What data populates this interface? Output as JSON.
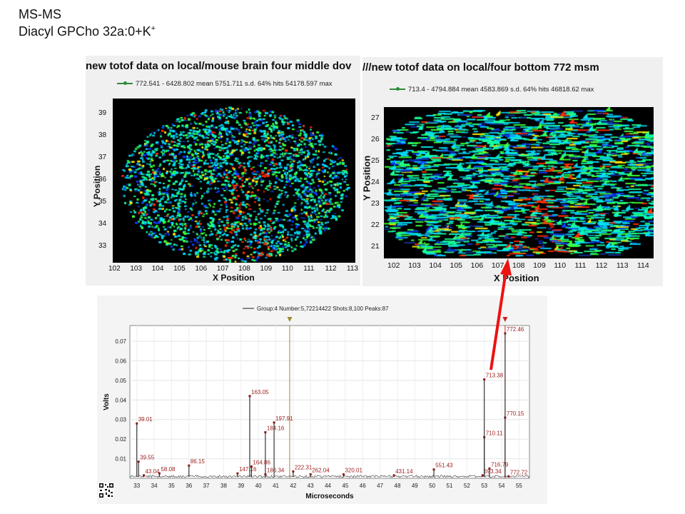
{
  "slide": {
    "title_line1": "MS-MS",
    "title_line2": "Diacyl GPCho 32a:0+K",
    "title_sup": "+"
  },
  "colors": {
    "marker": "#2e8b3a",
    "spectrum_line": "#8b1a1a",
    "peak_label": "#9b1c1c",
    "arrow": "#ee1111",
    "cursor_left": "#9a8a30",
    "cursor_right": "#cc2222"
  },
  "chart_data": [
    {
      "type": "heatmap",
      "title": "new totof data on local/mouse brain four middle dov",
      "legend": "772.541 - 6428.802 mean 5751.711 s.d. 64% hits 54178.597 max",
      "xlabel": "X Position",
      "ylabel": "Y Position",
      "xticks": [
        "102",
        "103",
        "104",
        "105",
        "106",
        "107",
        "108",
        "109",
        "110",
        "111",
        "112",
        "113"
      ],
      "yticks": [
        "39",
        "38",
        "37",
        "36",
        "35",
        "34",
        "33"
      ],
      "xlim": [
        102,
        113
      ],
      "ylim": [
        32.5,
        39.5
      ]
    },
    {
      "type": "heatmap",
      "title": "///new totof data on local/four bottom 772 msm",
      "legend": "713.4 - 4794.884 mean 4583.869 s.d. 64% hits 46818.62 max",
      "xlabel": "X Position",
      "ylabel": "Y Position",
      "xticks": [
        "102",
        "103",
        "104",
        "105",
        "106",
        "107",
        "108",
        "109",
        "110",
        "111",
        "112",
        "113",
        "114"
      ],
      "yticks": [
        "27",
        "26",
        "25",
        "24",
        "23",
        "22",
        "21"
      ],
      "xlim": [
        102,
        114
      ],
      "ylim": [
        20.5,
        27.5
      ]
    },
    {
      "type": "line",
      "legend": "Group:4 Number:5,72214422 Shots:8,100 Peaks:87",
      "xlabel": "Microseconds",
      "ylabel": "Volts",
      "xlim": [
        32.6,
        55.6
      ],
      "ylim": [
        0,
        0.078
      ],
      "xticks": [
        "33",
        "34",
        "35",
        "36",
        "37",
        "38",
        "39",
        "40",
        "41",
        "42",
        "43",
        "44",
        "45",
        "46",
        "47",
        "48",
        "49",
        "50",
        "51",
        "52",
        "53",
        "54",
        "55"
      ],
      "yticks": [
        "0.01",
        "0.02",
        "0.03",
        "0.04",
        "0.05",
        "0.06",
        "0.07"
      ],
      "peaks": [
        {
          "x": 33.0,
          "y": 0.028,
          "label": "39.01"
        },
        {
          "x": 33.1,
          "y": 0.0085,
          "label": "39.55"
        },
        {
          "x": 33.4,
          "y": 0.0015,
          "label": "43.04"
        },
        {
          "x": 34.3,
          "y": 0.0025,
          "label": "58.08"
        },
        {
          "x": 36.0,
          "y": 0.0065,
          "label": "86.15"
        },
        {
          "x": 38.8,
          "y": 0.0025,
          "label": "147.16"
        },
        {
          "x": 39.5,
          "y": 0.042,
          "label": "163.05"
        },
        {
          "x": 39.6,
          "y": 0.006,
          "label": "164.86"
        },
        {
          "x": 40.4,
          "y": 0.0235,
          "label": "184.16"
        },
        {
          "x": 40.4,
          "y": 0.002,
          "label": "186.34"
        },
        {
          "x": 40.9,
          "y": 0.0285,
          "label": "197.91"
        },
        {
          "x": 42.0,
          "y": 0.0035,
          "label": "222.31"
        },
        {
          "x": 43.0,
          "y": 0.002,
          "label": "262.04"
        },
        {
          "x": 44.9,
          "y": 0.002,
          "label": "320.01"
        },
        {
          "x": 47.8,
          "y": 0.0015,
          "label": "431.14"
        },
        {
          "x": 50.1,
          "y": 0.0045,
          "label": "551.43"
        },
        {
          "x": 52.9,
          "y": 0.0015,
          "label": "693.34"
        },
        {
          "x": 53.0,
          "y": 0.021,
          "label": "710.11"
        },
        {
          "x": 53.0,
          "y": 0.0505,
          "label": "713.38"
        },
        {
          "x": 53.3,
          "y": 0.005,
          "label": "716.79"
        },
        {
          "x": 54.2,
          "y": 0.031,
          "label": "770.15"
        },
        {
          "x": 54.2,
          "y": 0.074,
          "label": "772.46"
        },
        {
          "x": 54.4,
          "y": 0.001,
          "label": "772.72"
        }
      ],
      "cursors": [
        {
          "x": 41.8,
          "color": "cursor_left"
        },
        {
          "x": 54.2,
          "color": "cursor_right"
        }
      ]
    }
  ]
}
